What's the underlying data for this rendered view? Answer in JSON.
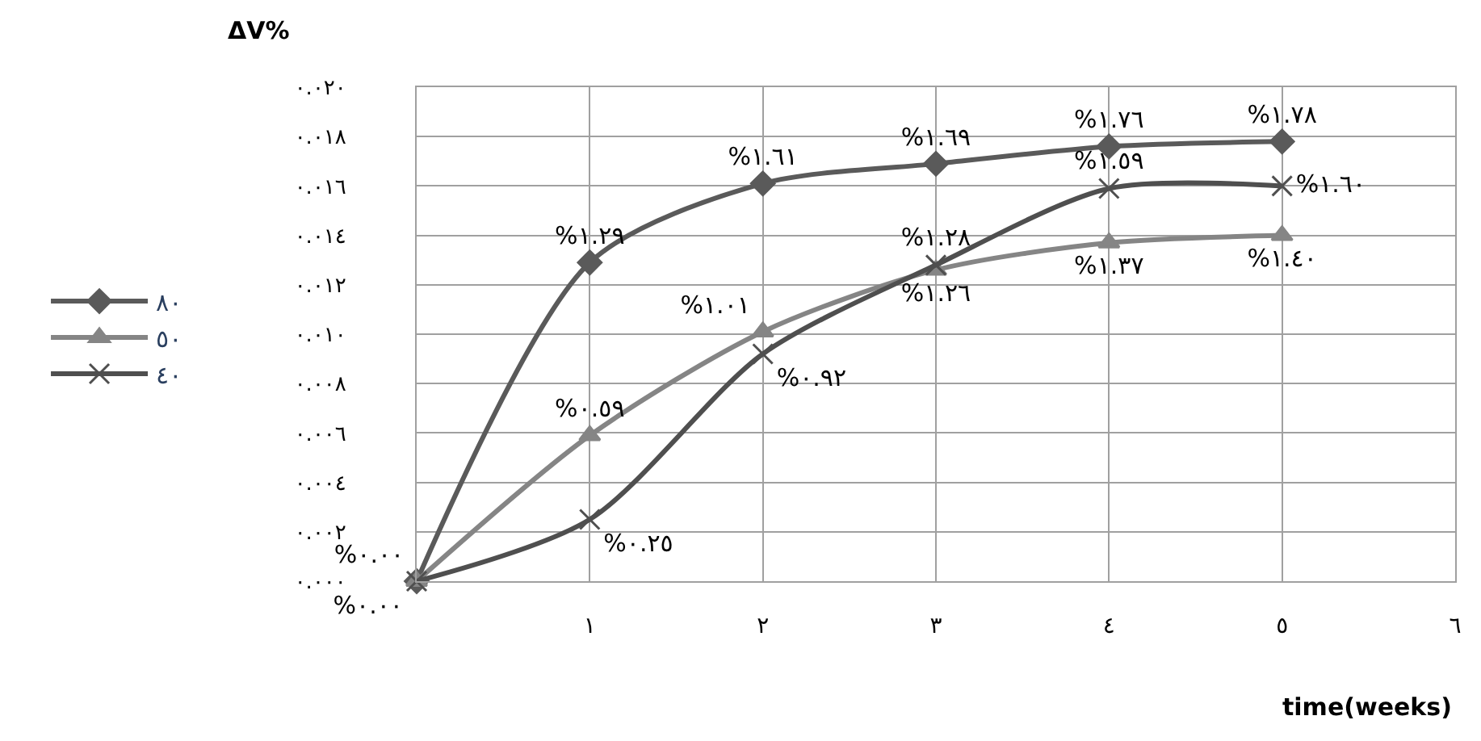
{
  "chart_data": {
    "type": "line",
    "xlabel": "time(weeks)",
    "ylabel": "ΔV%",
    "x": [
      0,
      1,
      2,
      3,
      4,
      5
    ],
    "series": [
      {
        "name": "٨٠",
        "color": "#5a5a5a",
        "marker": "diamond",
        "values": [
          0,
          0.0129,
          0.0161,
          0.0169,
          0.0176,
          0.0178
        ],
        "value_labels": [
          "%٠.٠٠",
          "%١.٢٩",
          "%١.٦١",
          "%١.٦٩",
          "%١.٧٦",
          "%١.٧٨"
        ]
      },
      {
        "name": "٥٠",
        "color": "#858585",
        "marker": "triangle",
        "values": [
          0,
          0.0059,
          0.0101,
          0.0126,
          0.0137,
          0.014
        ],
        "value_labels": [
          null,
          "%٠.٥٩",
          "%١.٠١",
          "%١.٢٦",
          "%١.٣٧",
          "%١.٤٠"
        ]
      },
      {
        "name": "٤٠",
        "color": "#4f4f4f",
        "marker": "cross",
        "values": [
          0,
          0.0025,
          0.0092,
          0.0128,
          0.0159,
          0.016
        ],
        "value_labels": [
          "%٠.٠٠",
          "%٠.٢٥",
          "%٠.٩٢",
          "%١.٢٨",
          "%١.٥٩",
          "%١.٦٠"
        ]
      }
    ],
    "xlim": [
      0,
      6
    ],
    "xticks": [
      {
        "value": 0,
        "label": null
      },
      {
        "value": 1,
        "label": "١"
      },
      {
        "value": 2,
        "label": "٢"
      },
      {
        "value": 3,
        "label": "٣"
      },
      {
        "value": 4,
        "label": "٤"
      },
      {
        "value": 5,
        "label": "٥"
      },
      {
        "value": 6,
        "label": "٦"
      }
    ],
    "ylim": [
      0,
      0.02
    ],
    "yticks": [
      {
        "value": 0,
        "label": "٠.٠٠٠"
      },
      {
        "value": 0.002,
        "label": "٠.٠٠٢"
      },
      {
        "value": 0.004,
        "label": "٠.٠٠٤"
      },
      {
        "value": 0.006,
        "label": "٠.٠٠٦"
      },
      {
        "value": 0.008,
        "label": "٠.٠٠٨"
      },
      {
        "value": 0.01,
        "label": "٠.٠١٠"
      },
      {
        "value": 0.012,
        "label": "٠.٠١٢"
      },
      {
        "value": 0.014,
        "label": "٠.٠١٤"
      },
      {
        "value": 0.016,
        "label": "٠.٠١٦"
      },
      {
        "value": 0.018,
        "label": "٠.٠١٨"
      },
      {
        "value": 0.02,
        "label": "٠.٠٢٠"
      }
    ],
    "grid": true,
    "legend": "left",
    "line_style": "solid"
  }
}
